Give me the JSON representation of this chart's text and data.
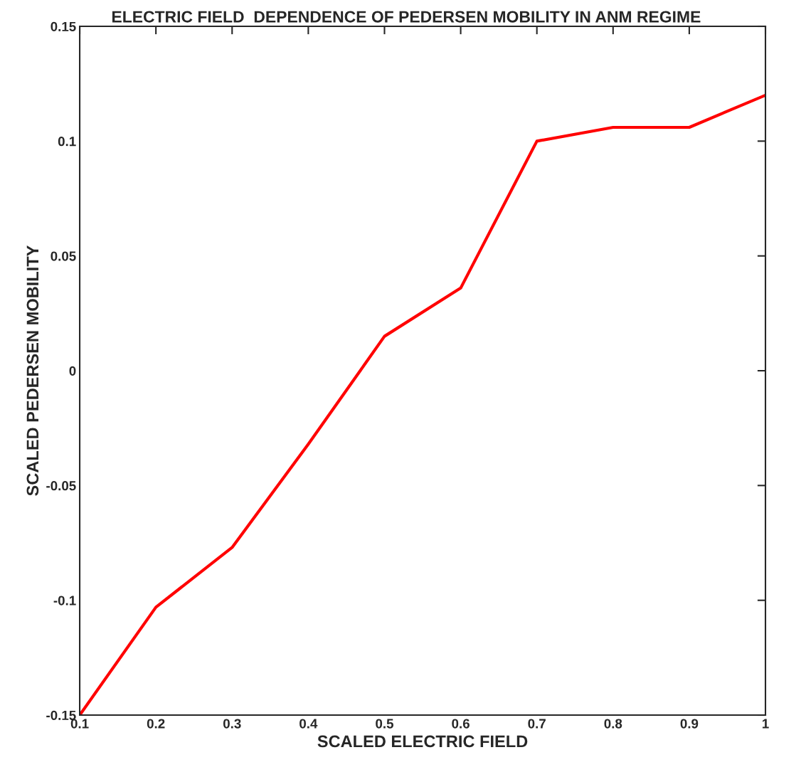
{
  "chart_data": {
    "type": "line",
    "title": "ELECTRIC FIELD  DEPENDENCE OF PEDERSEN MOBILITY IN ANM REGIME",
    "xlabel": "SCALED ELECTRIC FIELD",
    "ylabel": "SCALED PEDERSEN MOBILITY",
    "x": [
      0.1,
      0.2,
      0.3,
      0.4,
      0.5,
      0.6,
      0.7,
      0.8,
      0.9,
      1
    ],
    "series": [
      {
        "color": "#ff0000",
        "values": [
          -0.15,
          -0.103,
          -0.077,
          -0.032,
          0.015,
          0.036,
          0.1,
          0.106,
          0.106,
          0.12
        ]
      }
    ],
    "xlim": [
      0.1,
      1
    ],
    "ylim": [
      -0.15,
      0.15
    ],
    "xticks": [
      0.1,
      0.2,
      0.3,
      0.4,
      0.5,
      0.6,
      0.7,
      0.8,
      0.9,
      1
    ],
    "yticks": [
      -0.15,
      -0.1,
      -0.05,
      0,
      0.05,
      0.1,
      0.15
    ],
    "grid": false,
    "line_style": "solid",
    "marker": "none"
  }
}
